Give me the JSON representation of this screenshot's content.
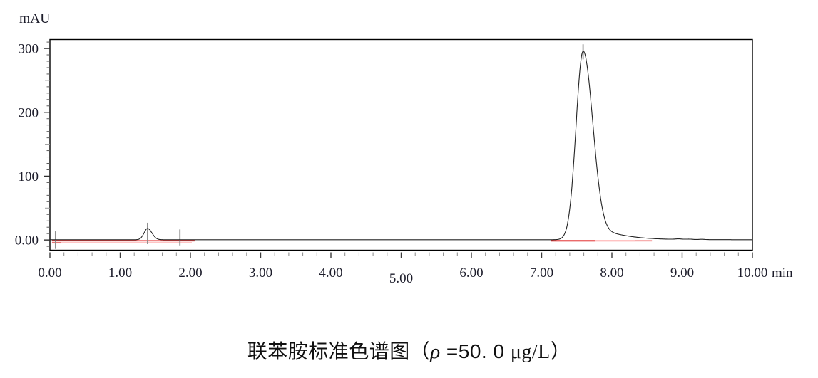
{
  "chart_data": {
    "type": "line",
    "title": "联苯胺标准色谱图（ρ =50.0 μg/L）",
    "xlabel": "min",
    "ylabel": "mAU",
    "xlim": [
      0,
      10
    ],
    "ylim": [
      -16,
      314
    ],
    "grid": "off",
    "x_minor_step_min": 0.2,
    "x_major_step_min": 1.0,
    "y_minor_step_mau": 10,
    "y_medium_step_mau": 50,
    "y_major_step_mau": 100,
    "x_ticks": [
      {
        "value": 0,
        "label": "0.00"
      },
      {
        "value": 1,
        "label": "1.00"
      },
      {
        "value": 2,
        "label": "2.00"
      },
      {
        "value": 3,
        "label": "3.00"
      },
      {
        "value": 4,
        "label": "4.00"
      },
      {
        "value": 5,
        "label": "5.00",
        "dy": 8
      },
      {
        "value": 6,
        "label": "6.00"
      },
      {
        "value": 7,
        "label": "7.00"
      },
      {
        "value": 8,
        "label": "8.00"
      },
      {
        "value": 9,
        "label": "9.00"
      },
      {
        "value": 10,
        "label": "10.00"
      }
    ],
    "y_ticks": [
      {
        "value": 0,
        "label": "0.00"
      },
      {
        "value": 100,
        "label": "100"
      },
      {
        "value": 200,
        "label": "200"
      },
      {
        "value": 300,
        "label": "300"
      }
    ],
    "series": [
      {
        "name": "detector-signal",
        "color": "#232323",
        "baseline_mau": 0.4,
        "peaks": [
          {
            "id": "peak-1",
            "retention_time_min": 1.39,
            "height_mau": 17.6,
            "sigma_left_min": 0.05,
            "sigma_right_min": 0.062
          },
          {
            "id": "peak-2-benzidine",
            "retention_time_min": 7.59,
            "height_mau": 295,
            "sigma_left_min": 0.1,
            "sigma_right_min": 0.14,
            "tail": {
              "amp_mau": 50,
              "tau_min": 0.3,
              "onset_min": 0.35,
              "onset_width_min": 0.08
            }
          },
          {
            "id": "baseline-noise-1",
            "retention_time_min": 8.95,
            "height_mau": 0.8,
            "sigma_left_min": 0.05,
            "sigma_right_min": 0.05
          },
          {
            "id": "baseline-noise-2",
            "retention_time_min": 9.1,
            "height_mau": 0.6,
            "sigma_left_min": 0.05,
            "sigma_right_min": 0.05
          },
          {
            "id": "baseline-noise-3",
            "retention_time_min": 9.28,
            "height_mau": 0.5,
            "sigma_left_min": 0.04,
            "sigma_right_min": 0.04
          }
        ]
      }
    ],
    "integration_baseline": {
      "color": "#dd1111",
      "segments": [
        {
          "from_min": 0.03,
          "to_min": 2.06,
          "level_mau": -1.3,
          "color": "#dd1111",
          "width": 1.6
        },
        {
          "from_min": 0.03,
          "to_min": 2.02,
          "level_mau": -3.9,
          "color": "#ffc4c4",
          "width": 1.2
        },
        {
          "from_min": 0.03,
          "to_min": 0.16,
          "level_mau": -4.6,
          "color": "#cc2222",
          "width": 1.5
        },
        {
          "from_min": 7.13,
          "to_min": 7.76,
          "level_mau": -1.3,
          "color": "#dd1111",
          "width": 1.8
        },
        {
          "from_min": 7.76,
          "to_min": 8.33,
          "level_mau": -1.3,
          "color": "#ff9d9d",
          "width": 1.8
        },
        {
          "from_min": 8.33,
          "to_min": 8.57,
          "level_mau": -1.3,
          "color": "#ee5c5c",
          "width": 1.6
        }
      ]
    },
    "peak_markers": [
      {
        "time_min": 0.08,
        "from_mau": -14,
        "to_mau": 13.5,
        "color": "#8f8f8f"
      },
      {
        "time_min": 1.39,
        "from_mau": -6.5,
        "to_mau": 27,
        "color": "#8f8f8f"
      },
      {
        "time_min": 1.85,
        "from_mau": -8.5,
        "to_mau": 16.5,
        "color": "#8f8f8f"
      },
      {
        "time_min": 7.59,
        "from_mau": 283,
        "to_mau": 306.5,
        "color": "#8f8f8f"
      }
    ]
  },
  "caption": {
    "prefix": "联苯胺标准色谱图（",
    "rho": "ρ",
    "equals_value": " =50. 0 ",
    "unit": "μg/L",
    "suffix": "）",
    "full_text": "联苯胺标准色谱图（ρ =50.0 μg/L）"
  },
  "colors": {
    "background": "#ffffff",
    "axis": "#000000",
    "label": "#1d1d2b",
    "trace": "#232323",
    "integration": "#dd1111",
    "marker": "#8f8f8f"
  }
}
